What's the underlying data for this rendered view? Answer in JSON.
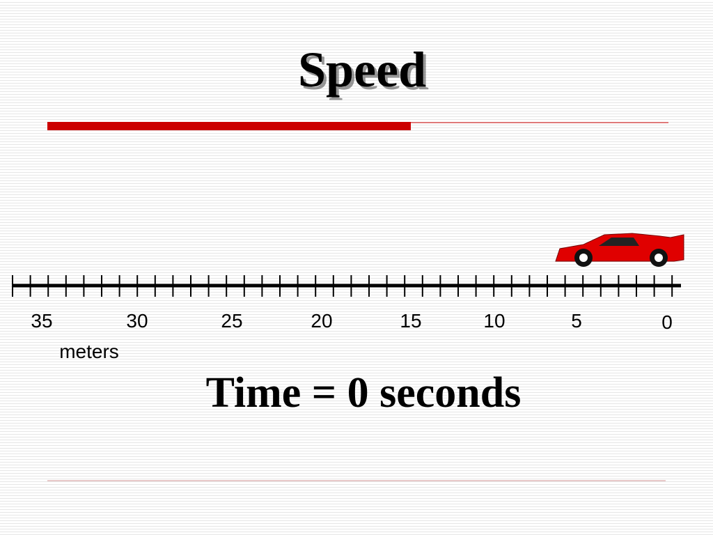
{
  "slide": {
    "title": "Speed",
    "ruler": {
      "labels": [
        35,
        30,
        25,
        20,
        15,
        10,
        5,
        0
      ],
      "unit": "meters"
    },
    "caption": "Time = 0 seconds"
  }
}
